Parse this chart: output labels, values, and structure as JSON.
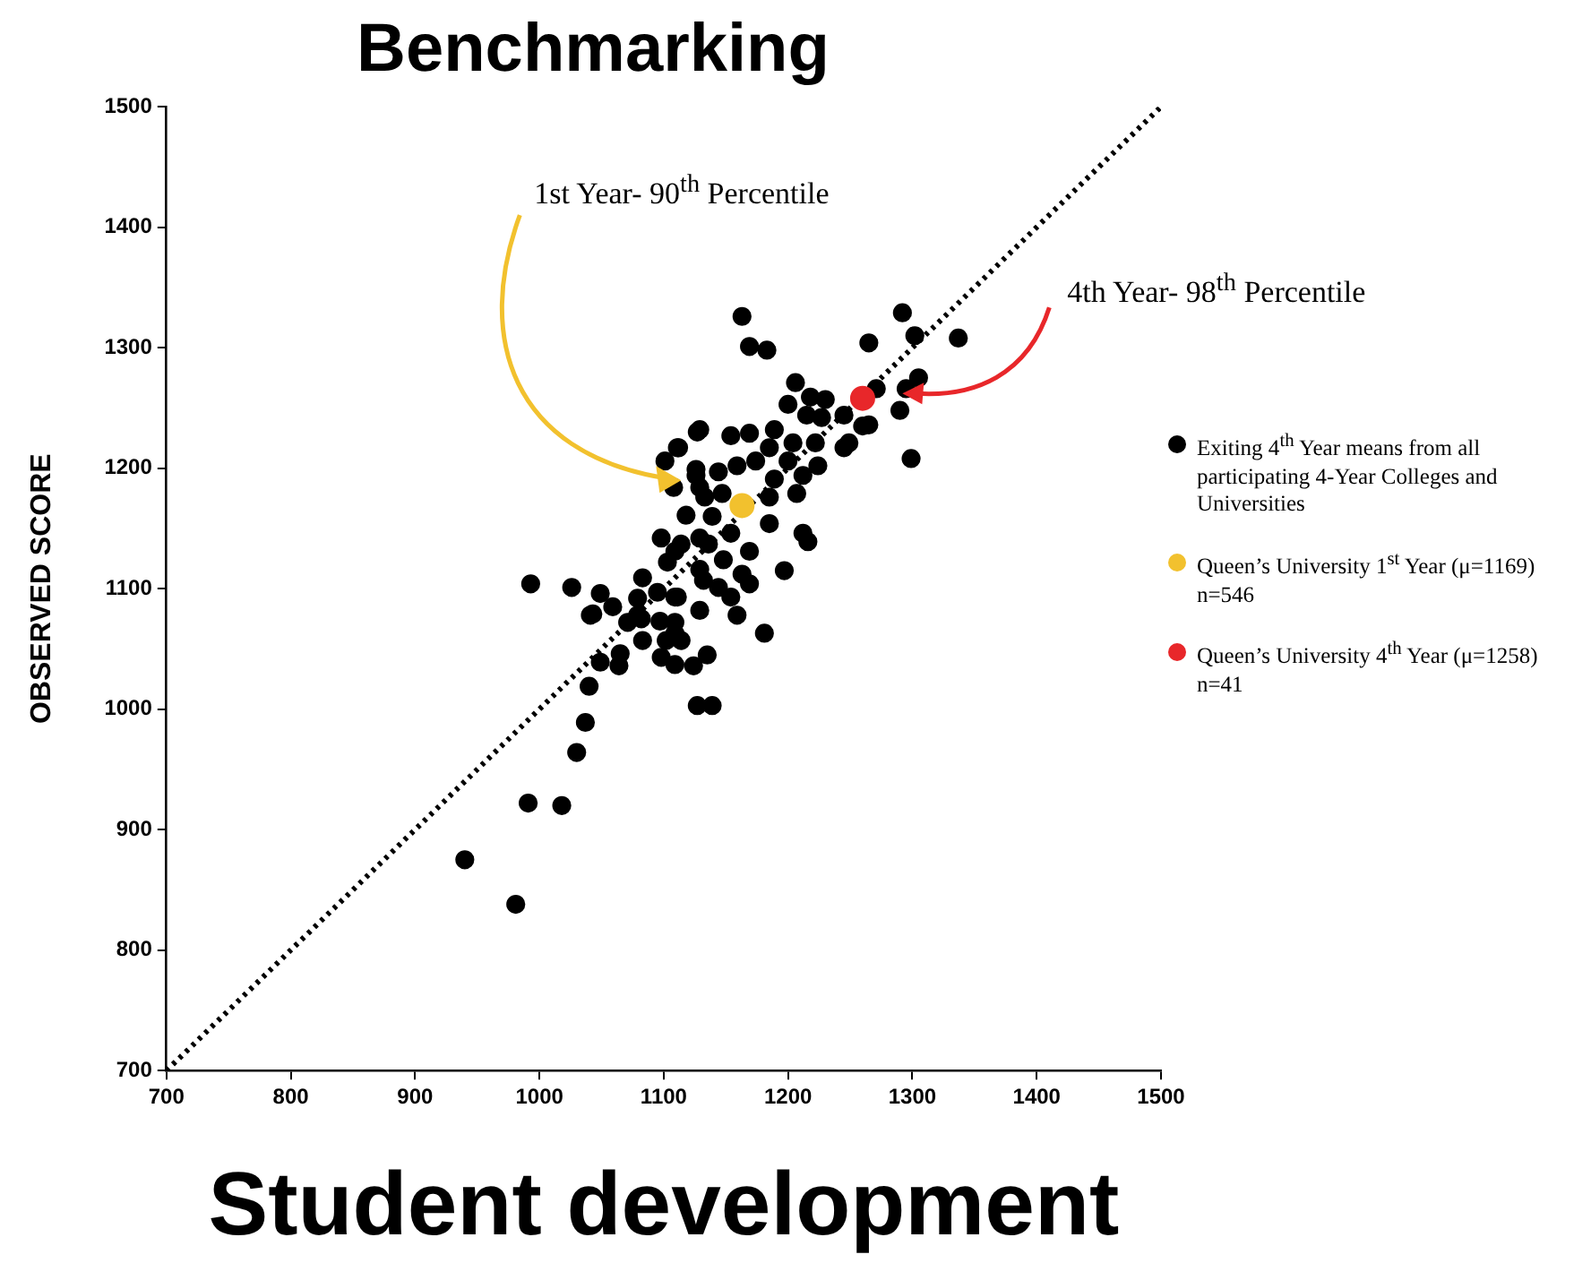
{
  "chart_data": {
    "type": "scatter",
    "title": "Benchmarking",
    "xlabel": "Student development",
    "ylabel": "OBSERVED SCORE",
    "xlim": [
      700,
      1500
    ],
    "ylim": [
      700,
      1500
    ],
    "xticks": [
      700,
      800,
      900,
      1000,
      1100,
      1200,
      1300,
      1400,
      1500
    ],
    "yticks": [
      700,
      800,
      900,
      1000,
      1100,
      1200,
      1300,
      1400,
      1500
    ],
    "grid": false,
    "legend": "right",
    "marker": "circle",
    "series": [
      {
        "type": "line",
        "color": "#000000",
        "line_style": "dotted",
        "marker": "none",
        "x": [
          700,
          1500
        ],
        "values": [
          700,
          1500
        ]
      },
      {
        "name": "Exiting 4$^{th}$ Year means from all participating 4-Year Colleges and Universities",
        "color": "#000000",
        "x": [
          940,
          981,
          991,
          1018,
          1030,
          1037,
          1040,
          1041,
          1049,
          1064,
          1065,
          1083,
          1097,
          1109,
          1102,
          1114,
          1098,
          1109,
          1124,
          1135,
          1127,
          1139,
          1071,
          1082,
          1127,
          1112,
          1101,
          1108,
          1126,
          993,
          1026,
          1049,
          1043,
          1059,
          1083,
          1079,
          1079,
          1095,
          1109,
          1098,
          1109,
          1118,
          1133,
          1132,
          1136,
          1163,
          1292,
          1169,
          1183,
          1265,
          1302,
          1337,
          1206,
          1271,
          1295,
          1305,
          1290,
          1260,
          1265,
          1299,
          1218,
          1230,
          1200,
          1215,
          1227,
          1245,
          1249,
          1245,
          1129,
          1154,
          1169,
          1189,
          1185,
          1204,
          1222,
          1200,
          1174,
          1159,
          1144,
          1126,
          1111,
          1189,
          1212,
          1224,
          1207,
          1185,
          1147,
          1129,
          1139,
          1154,
          1129,
          1114,
          1103,
          1129,
          1148,
          1169,
          1163,
          1144,
          1154,
          1129,
          1111,
          1185,
          1212,
          1216,
          1197,
          1169,
          1181,
          1159,
          1109
        ],
        "values": [
          875,
          838,
          922,
          920,
          964,
          989,
          1019,
          1078,
          1039,
          1036,
          1046,
          1057,
          1073,
          1072,
          1057,
          1057,
          1043,
          1037,
          1036,
          1045,
          1003,
          1003,
          1072,
          1075,
          1230,
          1217,
          1206,
          1184,
          1194,
          1104,
          1101,
          1096,
          1079,
          1085,
          1109,
          1092,
          1078,
          1097,
          1093,
          1142,
          1131,
          1161,
          1176,
          1107,
          1137,
          1326,
          1329,
          1301,
          1298,
          1304,
          1310,
          1308,
          1271,
          1266,
          1266,
          1275,
          1248,
          1235,
          1236,
          1208,
          1259,
          1257,
          1253,
          1244,
          1242,
          1244,
          1221,
          1217,
          1232,
          1227,
          1229,
          1232,
          1217,
          1221,
          1221,
          1206,
          1206,
          1202,
          1197,
          1199,
          1217,
          1191,
          1194,
          1202,
          1179,
          1176,
          1179,
          1184,
          1160,
          1146,
          1142,
          1137,
          1122,
          1116,
          1124,
          1131,
          1112,
          1101,
          1093,
          1082,
          1093,
          1154,
          1146,
          1139,
          1115,
          1104,
          1063,
          1078,
          1063
        ]
      },
      {
        "name": "Queen’s University 1$^{st}$ Year (μ=1169) n=546",
        "color": "#f2c12e",
        "x": [
          1163
        ],
        "values": [
          1169
        ]
      },
      {
        "name": "Queen’s University 4$^{th}$ Year (μ=1258) n=41",
        "color": "#e8272a",
        "x": [
          1260
        ],
        "values": [
          1258
        ]
      }
    ],
    "annotations": [
      {
        "text": "1st Year- 90$^{th}$ Percentile",
        "x": 1114,
        "y": 1190
      },
      {
        "text": "4th Year- 98$^{th}$ Percentile",
        "x": 1292,
        "y": 1262
      }
    ]
  }
}
